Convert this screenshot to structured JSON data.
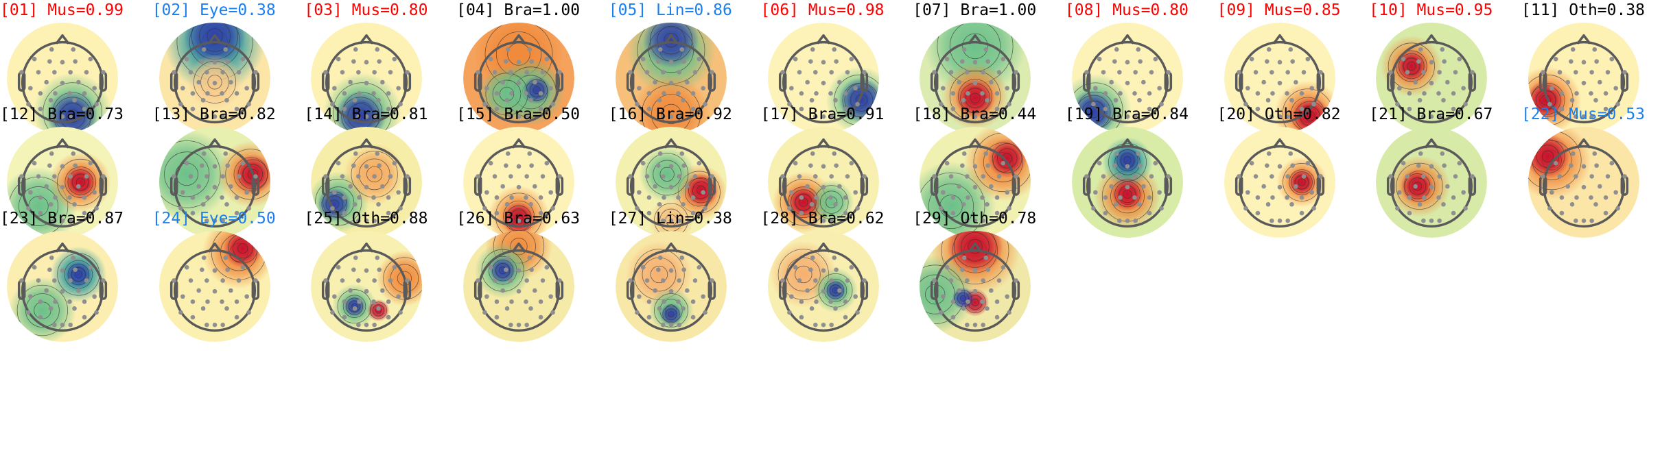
{
  "colors": {
    "muscle": "#ff0000",
    "low_confidence": "#1a7ff0",
    "brain": "#000000"
  },
  "components": [
    {
      "index": "[01]",
      "label": "Mus=0.99",
      "color": "#ff0000"
    },
    {
      "index": "[02]",
      "label": "Eye=0.38",
      "color": "#1a7ff0"
    },
    {
      "index": "[03]",
      "label": "Mus=0.80",
      "color": "#ff0000"
    },
    {
      "index": "[04]",
      "label": "Bra=1.00",
      "color": "#000000"
    },
    {
      "index": "[05]",
      "label": "Lin=0.86",
      "color": "#1a7ff0"
    },
    {
      "index": "[06]",
      "label": "Mus=0.98",
      "color": "#ff0000"
    },
    {
      "index": "[07]",
      "label": "Bra=1.00",
      "color": "#000000"
    },
    {
      "index": "[08]",
      "label": "Mus=0.80",
      "color": "#ff0000"
    },
    {
      "index": "[09]",
      "label": "Mus=0.85",
      "color": "#ff0000"
    },
    {
      "index": "[10]",
      "label": "Mus=0.95",
      "color": "#ff0000"
    },
    {
      "index": "[11]",
      "label": "Oth=0.38",
      "color": "#000000"
    },
    {
      "index": "[12]",
      "label": "Bra=0.73",
      "color": "#000000"
    },
    {
      "index": "[13]",
      "label": "Bra=0.82",
      "color": "#000000"
    },
    {
      "index": "[14]",
      "label": "Bra=0.81",
      "color": "#000000"
    },
    {
      "index": "[15]",
      "label": "Bra=0.50",
      "color": "#000000"
    },
    {
      "index": "[16]",
      "label": "Bra=0.92",
      "color": "#000000"
    },
    {
      "index": "[17]",
      "label": "Bra=0.91",
      "color": "#000000"
    },
    {
      "index": "[18]",
      "label": "Bra=0.44",
      "color": "#000000"
    },
    {
      "index": "[19]",
      "label": "Bra=0.84",
      "color": "#000000"
    },
    {
      "index": "[20]",
      "label": "Oth=0.82",
      "color": "#000000"
    },
    {
      "index": "[21]",
      "label": "Bra=0.67",
      "color": "#000000"
    },
    {
      "index": "[22]",
      "label": "Mus=0.53",
      "color": "#1a7ff0"
    },
    {
      "index": "[23]",
      "label": "Bra=0.87",
      "color": "#000000"
    },
    {
      "index": "[24]",
      "label": "Eye=0.50",
      "color": "#1a7ff0"
    },
    {
      "index": "[25]",
      "label": "Oth=0.88",
      "color": "#000000"
    },
    {
      "index": "[26]",
      "label": "Bra=0.63",
      "color": "#000000"
    },
    {
      "index": "[27]",
      "label": "Lin=0.38",
      "color": "#000000"
    },
    {
      "index": "[28]",
      "label": "Bra=0.62",
      "color": "#000000"
    },
    {
      "index": "[29]",
      "label": "Oth=0.78",
      "color": "#000000"
    }
  ]
}
